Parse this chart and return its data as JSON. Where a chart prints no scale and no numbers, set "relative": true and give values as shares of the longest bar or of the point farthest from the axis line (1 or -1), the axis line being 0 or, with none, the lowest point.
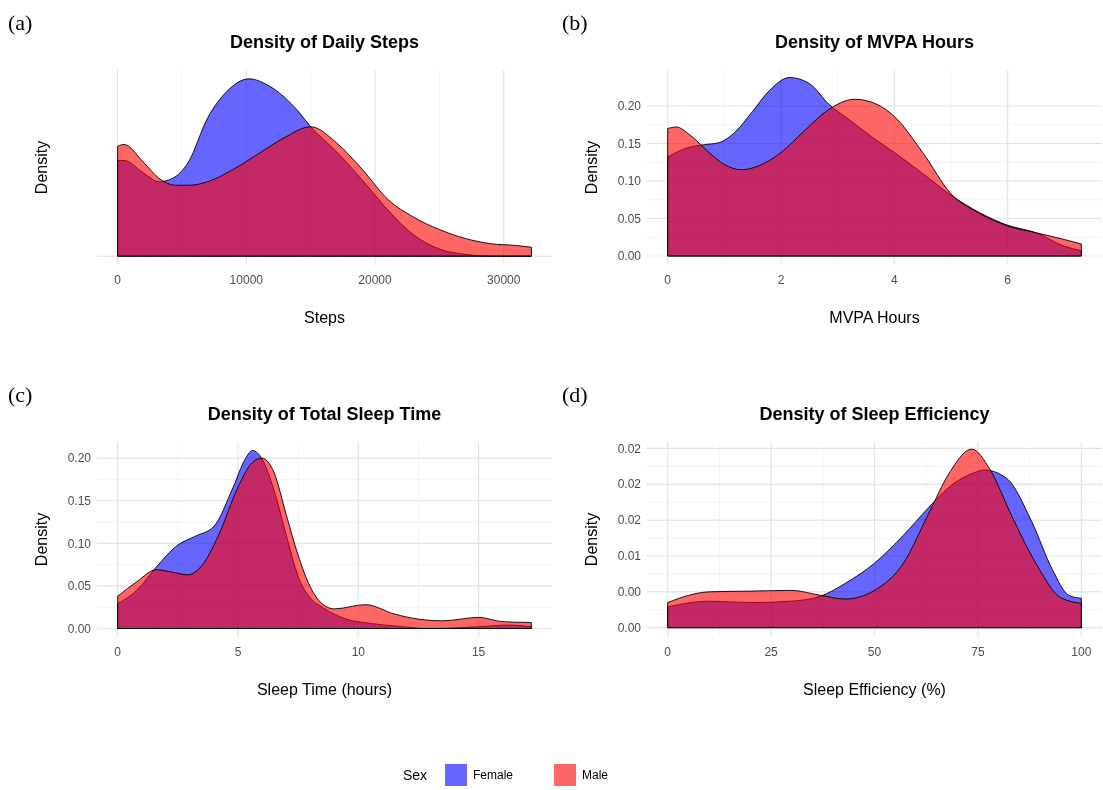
{
  "chart_data": [
    {
      "type": "area",
      "title": "Density of Daily Steps",
      "xlabel": "Steps",
      "ylabel": "Density",
      "annotations": [
        "(a)"
      ],
      "legend": "bottom",
      "legend_title": "Sex",
      "grid": "x",
      "xlim": [
        -1600,
        33750
      ],
      "xticks": [
        0,
        10000,
        20000,
        30000
      ],
      "relative": true,
      "series": [
        {
          "name": "Female",
          "color": "#0000ff",
          "x": [
            0,
            500,
            2000,
            3200,
            4000,
            5500,
            7000,
            8500,
            10200,
            12000,
            14000,
            15000,
            17000,
            19000,
            21000,
            23000,
            25000,
            27000,
            29000,
            32150
          ],
          "values": [
            0.54,
            0.54,
            0.47,
            0.42,
            0.43,
            0.53,
            0.78,
            0.93,
            1,
            0.95,
            0.82,
            0.73,
            0.59,
            0.43,
            0.26,
            0.12,
            0.04,
            0.01,
            0,
            0
          ]
        },
        {
          "name": "Male",
          "color": "#ff0000",
          "x": [
            0,
            500,
            2000,
            3200,
            4500,
            5600,
            7000,
            9000,
            11000,
            13000,
            15000,
            17000,
            19000,
            21000,
            23000,
            25000,
            27000,
            29000,
            31000,
            32150
          ],
          "values": [
            0.62,
            0.63,
            0.53,
            0.44,
            0.4,
            0.4,
            0.42,
            0.49,
            0.58,
            0.67,
            0.73,
            0.64,
            0.49,
            0.32,
            0.22,
            0.15,
            0.1,
            0.07,
            0.06,
            0.05
          ]
        }
      ]
    },
    {
      "type": "area",
      "title": "Density of MVPA Hours",
      "xlabel": "MVPA Hours",
      "ylabel": "Density",
      "annotations": [
        "(b)"
      ],
      "grid": true,
      "xlim": [
        -0.365,
        7.665
      ],
      "xticks": [
        0,
        2,
        4,
        6
      ],
      "ylim": [
        -0.012,
        0.248
      ],
      "yticks": [
        {
          "value": 0,
          "label": "0.00"
        },
        {
          "value": 0.05,
          "label": "0.05"
        },
        {
          "value": 0.1,
          "label": "0.10"
        },
        {
          "value": 0.15,
          "label": "0.15"
        },
        {
          "value": 0.2,
          "label": "0.20"
        }
      ],
      "series": [
        {
          "color": "#0000ff",
          "x": [
            0,
            0.3,
            0.6,
            0.9,
            1.2,
            1.5,
            1.8,
            2.15,
            2.5,
            2.85,
            3.2,
            3.6,
            4.0,
            4.5,
            5.0,
            5.5,
            6.0,
            6.5,
            7.0,
            7.3
          ],
          "values": [
            0.132,
            0.143,
            0.148,
            0.151,
            0.166,
            0.193,
            0.221,
            0.238,
            0.23,
            0.202,
            0.182,
            0.159,
            0.138,
            0.11,
            0.081,
            0.058,
            0.041,
            0.031,
            0.013,
            0.007
          ]
        },
        {
          "color": "#ff0000",
          "x": [
            0,
            0.15,
            0.4,
            0.7,
            1.0,
            1.3,
            1.6,
            2.0,
            2.4,
            2.8,
            3.3,
            3.7,
            4.0,
            4.5,
            5.0,
            5.5,
            6.0,
            6.5,
            7.0,
            7.3
          ],
          "values": [
            0.17,
            0.172,
            0.161,
            0.14,
            0.122,
            0.115,
            0.12,
            0.138,
            0.166,
            0.193,
            0.209,
            0.202,
            0.186,
            0.138,
            0.083,
            0.057,
            0.04,
            0.031,
            0.022,
            0.016
          ]
        }
      ]
    },
    {
      "type": "area",
      "title": "Density of Total Sleep Time",
      "xlabel": "Sleep Time (hours)",
      "ylabel": "Density",
      "annotations": [
        "(c)"
      ],
      "grid": true,
      "xlim": [
        -0.86,
        18.05
      ],
      "xticks": [
        0,
        5,
        10,
        15
      ],
      "ylim": [
        -0.01,
        0.219
      ],
      "yticks": [
        {
          "value": 0,
          "label": "0.00"
        },
        {
          "value": 0.05,
          "label": "0.05"
        },
        {
          "value": 0.1,
          "label": "0.10"
        },
        {
          "value": 0.15,
          "label": "0.15"
        },
        {
          "value": 0.2,
          "label": "0.20"
        }
      ],
      "series": [
        {
          "color": "#0000ff",
          "x": [
            0,
            0.8,
            1.6,
            2.5,
            3.2,
            4.0,
            4.8,
            5.3,
            5.6,
            6.0,
            6.5,
            7.0,
            7.5,
            8.0,
            8.5,
            9.5,
            10.5,
            11.5,
            13,
            15,
            16.2,
            17.19
          ],
          "values": [
            0.029,
            0.045,
            0.072,
            0.098,
            0.108,
            0.12,
            0.166,
            0.199,
            0.209,
            0.199,
            0.162,
            0.11,
            0.061,
            0.036,
            0.025,
            0.011,
            0.006,
            0.003,
            0,
            0.002,
            0.004,
            0.002
          ]
        },
        {
          "color": "#ff0000",
          "x": [
            0,
            0.8,
            1.6,
            2.3,
            2.9,
            3.5,
            4.2,
            5.0,
            5.6,
            6.0,
            6.5,
            7.0,
            7.5,
            8.0,
            8.5,
            9.0,
            10.3,
            11.5,
            12.5,
            13.5,
            15,
            16,
            17.19
          ],
          "values": [
            0.038,
            0.055,
            0.069,
            0.066,
            0.063,
            0.074,
            0.11,
            0.166,
            0.195,
            0.2,
            0.183,
            0.134,
            0.086,
            0.049,
            0.029,
            0.023,
            0.028,
            0.017,
            0.011,
            0.009,
            0.013,
            0.008,
            0.007
          ]
        }
      ]
    },
    {
      "type": "area",
      "title": "Density of Sleep Efficiency",
      "xlabel": "Sleep Efficiency (%)",
      "ylabel": "Density",
      "annotations": [
        "(d)"
      ],
      "grid": true,
      "xlim": [
        -5,
        105
      ],
      "xticks": [
        0,
        25,
        50,
        75,
        100
      ],
      "ylim": [
        -0.0013,
        0.0259
      ],
      "yticks": [
        {
          "value": 0,
          "label": "0.00"
        },
        {
          "value": 0.005,
          "label": "0.00"
        },
        {
          "value": 0.01,
          "label": "0.01"
        },
        {
          "value": 0.015,
          "label": "0.02"
        },
        {
          "value": 0.02,
          "label": "0.02"
        },
        {
          "value": 0.025,
          "label": "0.02"
        }
      ],
      "series": [
        {
          "color": "#0000ff",
          "x": [
            0,
            10,
            20,
            30,
            37,
            43,
            50,
            57,
            63,
            68,
            74,
            76.5,
            82,
            88,
            93,
            97,
            100
          ],
          "values": [
            0.0029,
            0.0037,
            0.0035,
            0.0037,
            0.0044,
            0.0062,
            0.009,
            0.0129,
            0.0167,
            0.0196,
            0.0216,
            0.022,
            0.0208,
            0.0148,
            0.0081,
            0.0045,
            0.0041
          ]
        },
        {
          "color": "#ff0000",
          "x": [
            0,
            5,
            10,
            20,
            30,
            37,
            43,
            50,
            57,
            63,
            68,
            73.5,
            78,
            83,
            89,
            95,
            100
          ],
          "values": [
            0.0035,
            0.0045,
            0.005,
            0.0051,
            0.0052,
            0.0045,
            0.004,
            0.0052,
            0.009,
            0.0158,
            0.0215,
            0.0249,
            0.022,
            0.0158,
            0.009,
            0.0042,
            0.0034
          ]
        }
      ]
    }
  ]
}
